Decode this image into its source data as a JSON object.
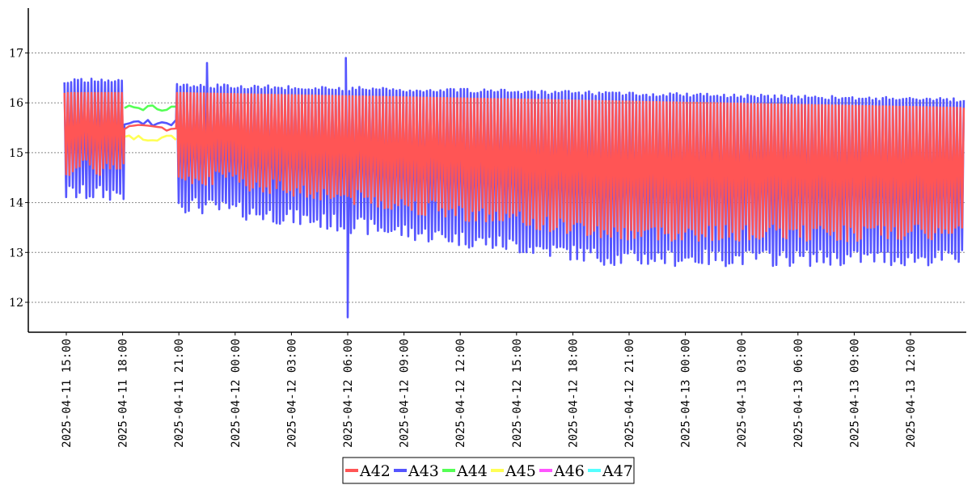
{
  "chart_data": {
    "type": "line",
    "title": "",
    "xlabel": "",
    "ylabel": "",
    "ylim": [
      11.4,
      17.9
    ],
    "y_ticks": [
      12,
      13,
      14,
      15,
      16,
      17
    ],
    "x_range_hours": [
      -1.0,
      23.8
    ],
    "x_ticks": [
      {
        "label": "2025-04-11  15:00",
        "hour": 0
      },
      {
        "label": "2025-04-11  18:00",
        "hour": 3
      },
      {
        "label": "2025-04-11  21:00",
        "hour": 6
      },
      {
        "label": "2025-04-12  00:00",
        "hour": 9
      },
      {
        "label": "2025-04-12  03:00",
        "hour": 12
      },
      {
        "label": "2025-04-12  06:00",
        "hour": 15
      },
      {
        "label": "2025-04-12  09:00",
        "hour": 18
      },
      {
        "label": "2025-04-12  12:00",
        "hour": 21
      },
      {
        "label": "2025-04-12  15:00",
        "hour": 24
      },
      {
        "label": "2025-04-12  18:00",
        "hour": 27
      },
      {
        "label": "2025-04-12  21:00",
        "hour": 30
      },
      {
        "label": "2025-04-13  00:00",
        "hour": 33
      },
      {
        "label": "2025-04-13  03:00",
        "hour": 36
      },
      {
        "label": "2025-04-13  06:00",
        "hour": 39
      },
      {
        "label": "2025-04-13  09:00",
        "hour": 42
      },
      {
        "label": "2025-04-13  12:00",
        "hour": 45
      }
    ],
    "grid": {
      "y": true,
      "x": false,
      "style": "dotted"
    },
    "legend_position": "bottom-center",
    "series": [
      {
        "name": "A42",
        "color": "#ff5555"
      },
      {
        "name": "A43",
        "color": "#5555ff"
      },
      {
        "name": "A44",
        "color": "#55ff55"
      },
      {
        "name": "A45",
        "color": "#ffff55"
      },
      {
        "name": "A46",
        "color": "#ff55ff"
      },
      {
        "name": "A47",
        "color": "#55ffff"
      }
    ],
    "segments": [
      {
        "start": -0.1,
        "end": 3.1,
        "mode": "oscillating",
        "A42": {
          "low": 14.7,
          "high": 16.2
        },
        "A43": {
          "low": 14.2,
          "high": 16.4
        }
      },
      {
        "start": 3.1,
        "end": 5.9,
        "mode": "flat",
        "A42": {
          "level": 15.5
        },
        "A43": {
          "level": 15.6
        },
        "A44": {
          "level": 15.9
        },
        "A45": {
          "level": 15.3
        }
      },
      {
        "start": 5.9,
        "end": 47.9,
        "mode": "oscillating",
        "A42": {
          "low_start": 14.6,
          "low_end": 13.4,
          "high_start": 16.2,
          "high_end": 15.9
        },
        "A43": {
          "low_start": 14.0,
          "low_end": 12.9,
          "high_start": 16.3,
          "high_end": 16.0
        }
      }
    ],
    "annotations": [
      {
        "series": "A43",
        "hour": 7.5,
        "value": 16.8,
        "kind": "spike"
      },
      {
        "series": "A43",
        "hour": 14.9,
        "value": 16.9,
        "kind": "spike"
      },
      {
        "series": "A43",
        "hour": 15.0,
        "value": 11.7,
        "kind": "dip"
      }
    ]
  }
}
